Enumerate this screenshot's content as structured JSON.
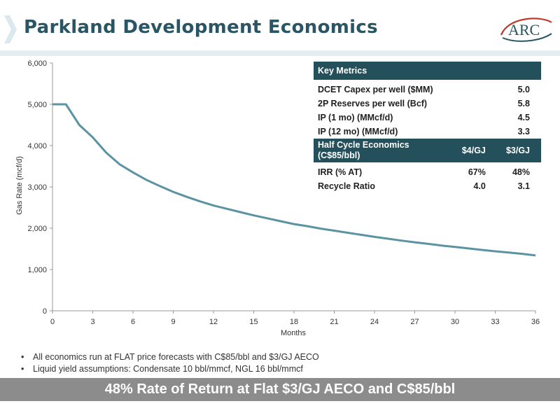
{
  "header": {
    "title": "Parkland Development Economics",
    "logo_text": "ARC",
    "accent_color": "#2a5564"
  },
  "chart_data": {
    "type": "line",
    "xlabel": "Months",
    "ylabel": "Gas Rate (mcf/d)",
    "xlim": [
      0,
      36
    ],
    "ylim": [
      0,
      6000
    ],
    "xticks": [
      "0",
      "3",
      "6",
      "9",
      "12",
      "15",
      "18",
      "21",
      "24",
      "27",
      "30",
      "33",
      "36"
    ],
    "yticks": [
      "0",
      "1,000",
      "2,000",
      "3,000",
      "4,000",
      "5,000",
      "6,000"
    ],
    "grid": false,
    "series": [
      {
        "color": "#5b93a3",
        "x": [
          0,
          1,
          2,
          3,
          4,
          5,
          6,
          7,
          8,
          9,
          10,
          11,
          12,
          13,
          14,
          15,
          16,
          17,
          18,
          19,
          20,
          21,
          22,
          23,
          24,
          25,
          26,
          27,
          28,
          29,
          30,
          31,
          32,
          33,
          34,
          35,
          36
        ],
        "y": [
          5000,
          5000,
          4500,
          4200,
          3830,
          3550,
          3350,
          3170,
          3020,
          2880,
          2760,
          2650,
          2550,
          2470,
          2390,
          2310,
          2240,
          2170,
          2100,
          2050,
          1990,
          1940,
          1890,
          1840,
          1790,
          1745,
          1700,
          1660,
          1620,
          1580,
          1545,
          1510,
          1475,
          1440,
          1410,
          1380,
          1340
        ]
      }
    ]
  },
  "metrics_table": {
    "header": "Key Metrics",
    "rows": [
      {
        "label": "DCET Capex per well ($MM)",
        "value": "5.0"
      },
      {
        "label": "2P Reserves  per well (Bcf)",
        "value": "5.8"
      },
      {
        "label": "IP (1 mo) (MMcf/d)",
        "value": "4.5"
      },
      {
        "label": "IP (12 mo) (MMcf/d)",
        "value": "3.3"
      }
    ],
    "economics_header_line1": "Half Cycle Economics",
    "economics_header_line2": "(C$85/bbl)",
    "col1": "$4/GJ",
    "col2": "$3/GJ",
    "econ_rows": [
      {
        "label": "IRR (% AT)",
        "v1": "67%",
        "v2": "48%"
      },
      {
        "label": "Recycle Ratio",
        "v1": "4.0",
        "v2": "3.1"
      }
    ]
  },
  "notes": [
    "All economics run at FLAT price forecasts with C$85/bbl and $3/GJ AECO",
    "Liquid yield assumptions:  Condensate 10 bbl/mmcf, NGL 16 bbl/mmcf"
  ],
  "banner": "48% Rate of Return at Flat $3/GJ AECO and C$85/bbl"
}
